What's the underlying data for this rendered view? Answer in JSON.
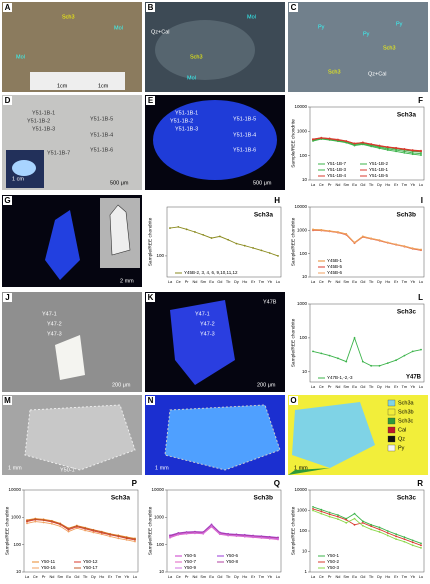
{
  "panels": [
    {
      "letter": "A",
      "labels": [
        "Sch3",
        "Mol",
        "Mol",
        "1cm",
        "1cm"
      ]
    },
    {
      "letter": "B",
      "labels": [
        "Mol",
        "Qz+Cal",
        "Sch3",
        "Mol"
      ]
    },
    {
      "letter": "C",
      "labels": [
        "Py",
        "Py",
        "Py",
        "Sch3",
        "Sch3",
        "Qz+Cal"
      ]
    },
    {
      "letter": "D",
      "labels": [
        "Y51-1B-1",
        "Y51-1B-2",
        "Y51-1B-3",
        "Y51-1B-5",
        "Y51-1B-4",
        "Y51-1B-6",
        "Y51-1B-7",
        "1 cm",
        "500 μm"
      ]
    },
    {
      "letter": "E",
      "labels": [
        "Y51-1B-1",
        "Y51-1B-2",
        "Y51-1B-3",
        "Y51-1B-5",
        "Y51-1B-4",
        "Y51-1B-6",
        "500 μm"
      ]
    },
    {
      "letter": "G",
      "labels": [
        "2 mm"
      ]
    },
    {
      "letter": "J",
      "labels": [
        "Y47-1",
        "Y47-2",
        "Y47-3",
        "200 μm"
      ]
    },
    {
      "letter": "K",
      "labels": [
        "Y47-1",
        "Y47-2",
        "Y47-3",
        "Y47B",
        "200 μm"
      ]
    },
    {
      "letter": "M",
      "labels": [
        "1 mm",
        "Y50-1"
      ]
    },
    {
      "letter": "N",
      "labels": [
        "1 mm"
      ]
    },
    {
      "letter": "O",
      "labels": [
        "1 mm"
      ],
      "legend": [
        {
          "name": "Sch3a",
          "color": "#7fd3e6"
        },
        {
          "name": "Sch3b",
          "color": "#f2ee3a"
        },
        {
          "name": "Sch3c",
          "color": "#2f9a3a"
        },
        {
          "name": "Cal",
          "color": "#c0182a"
        },
        {
          "name": "Qz",
          "color": "#111111"
        },
        {
          "name": "Py",
          "color": "#f4f4f4"
        }
      ]
    }
  ],
  "chart_data": [
    {
      "type": "line",
      "panel": "F",
      "title": "Sch3a",
      "y_label": "Sample/REE chondrite",
      "log_y": true,
      "categories": [
        "La",
        "Ce",
        "Pr",
        "Nd",
        "Sm",
        "Eu",
        "Gd",
        "Tb",
        "Dy",
        "Ho",
        "Er",
        "Tm",
        "Yb",
        "Lu"
      ],
      "ylim": [
        10,
        10000
      ],
      "yticks": [
        10,
        100,
        1000,
        10000
      ],
      "series": [
        {
          "name": "Y51-1B-7",
          "color": "#3bb34a",
          "values": [
            450,
            520,
            480,
            430,
            380,
            300,
            330,
            280,
            240,
            210,
            190,
            170,
            150,
            140
          ]
        },
        {
          "name": "Y51-1B-2",
          "color": "#3bb34a",
          "values": [
            420,
            500,
            460,
            410,
            360,
            280,
            310,
            260,
            220,
            190,
            170,
            150,
            130,
            120
          ]
        },
        {
          "name": "Y51-1B-3",
          "color": "#3bb34a",
          "values": [
            400,
            480,
            440,
            390,
            340,
            260,
            290,
            240,
            200,
            170,
            150,
            130,
            115,
            105
          ]
        },
        {
          "name": "Y51-1B-1",
          "color": "#d83a2e",
          "values": [
            480,
            550,
            510,
            460,
            400,
            320,
            350,
            300,
            260,
            230,
            210,
            190,
            170,
            160
          ]
        },
        {
          "name": "Y51-1B-4",
          "color": "#d83a2e",
          "values": [
            460,
            530,
            490,
            440,
            390,
            310,
            340,
            290,
            250,
            220,
            200,
            180,
            160,
            150
          ]
        },
        {
          "name": "Y51-1B-5",
          "color": "#d83a2e",
          "values": [
            470,
            540,
            500,
            450,
            395,
            315,
            345,
            295,
            255,
            225,
            205,
            185,
            165,
            155
          ]
        }
      ]
    },
    {
      "type": "line",
      "panel": "H",
      "title": "Sch3a",
      "y_label": "Sample/REE chondrite",
      "log_y": true,
      "categories": [
        "La",
        "Ce",
        "Pr",
        "Nd",
        "Sm",
        "Eu",
        "Gd",
        "Tb",
        "Dy",
        "Ho",
        "Er",
        "Tm",
        "Yb",
        "Lu"
      ],
      "ylim": [
        50,
        500
      ],
      "yticks": [
        100
      ],
      "series": [
        {
          "name": "Y45B-2, 3, 4, 6, 9,10,11,12",
          "color": "#8a8a1e",
          "values": [
            250,
            260,
            240,
            220,
            200,
            180,
            190,
            170,
            150,
            140,
            130,
            120,
            110,
            100
          ]
        }
      ]
    },
    {
      "type": "line",
      "panel": "I",
      "title": "Sch3b",
      "y_label": "Sample/REE chondrite",
      "log_y": true,
      "categories": [
        "La",
        "Ce",
        "Pr",
        "Nd",
        "Sm",
        "Eu",
        "Gd",
        "Tb",
        "Dy",
        "Ho",
        "Er",
        "Tm",
        "Yb",
        "Lu"
      ],
      "ylim": [
        10,
        10000
      ],
      "yticks": [
        10,
        100,
        1000,
        10000
      ],
      "series": [
        {
          "name": "Y45B-1",
          "color": "#e8892b",
          "values": [
            1100,
            1050,
            950,
            850,
            700,
            300,
            550,
            450,
            380,
            300,
            250,
            210,
            170,
            150
          ]
        },
        {
          "name": "Y45B-5",
          "color": "#d83a2e",
          "values": [
            1000,
            980,
            900,
            800,
            650,
            280,
            520,
            430,
            360,
            290,
            240,
            200,
            160,
            140
          ]
        },
        {
          "name": "Y45B-6",
          "color": "#f0a060",
          "values": [
            1050,
            1000,
            920,
            820,
            680,
            290,
            530,
            440,
            370,
            295,
            245,
            205,
            165,
            145
          ]
        }
      ]
    },
    {
      "type": "line",
      "panel": "L",
      "title": "Sch3c",
      "y_label": "Sample/REE chondrite",
      "log_y": true,
      "note": "Y47B",
      "categories": [
        "La",
        "Ce",
        "Pr",
        "Nd",
        "Sm",
        "Eu",
        "Gd",
        "Tb",
        "Dy",
        "Ho",
        "Er",
        "Tm",
        "Yb",
        "Lu"
      ],
      "ylim": [
        5,
        1000
      ],
      "yticks": [
        10,
        100,
        1000
      ],
      "series": [
        {
          "name": "Y47B-1,-2,-3",
          "color": "#3bb34a",
          "values": [
            40,
            35,
            30,
            25,
            20,
            100,
            20,
            15,
            15,
            18,
            22,
            30,
            40,
            45
          ]
        }
      ]
    },
    {
      "type": "line",
      "panel": "P",
      "title": "Sch3a",
      "y_label": "Sample/REE chondrite",
      "log_y": true,
      "categories": [
        "La",
        "Ce",
        "Pr",
        "Nd",
        "Sm",
        "Eu",
        "Gd",
        "Tb",
        "Dy",
        "Ho",
        "Er",
        "Tm",
        "Yb",
        "Lu"
      ],
      "ylim": [
        10,
        10000
      ],
      "yticks": [
        10,
        100,
        1000,
        10000
      ],
      "series": [
        {
          "name": "Y50-11",
          "color": "#e8892b",
          "values": [
            800,
            900,
            850,
            750,
            600,
            400,
            500,
            420,
            350,
            300,
            250,
            220,
            190,
            170
          ]
        },
        {
          "name": "Y50-12",
          "color": "#d83a2e",
          "values": [
            700,
            820,
            780,
            680,
            550,
            350,
            450,
            380,
            320,
            270,
            230,
            200,
            170,
            150
          ]
        },
        {
          "name": "Y50-16",
          "color": "#f0a060",
          "values": [
            600,
            700,
            650,
            580,
            470,
            300,
            400,
            330,
            280,
            240,
            200,
            170,
            150,
            130
          ]
        },
        {
          "name": "Y50-17",
          "color": "#c0582a",
          "values": [
            750,
            860,
            800,
            720,
            580,
            380,
            480,
            400,
            340,
            290,
            240,
            210,
            180,
            160
          ]
        }
      ]
    },
    {
      "type": "line",
      "panel": "Q",
      "title": "Sch3b",
      "y_label": "Sample/REE chondrite",
      "log_y": true,
      "categories": [
        "La",
        "Ce",
        "Pr",
        "Nd",
        "Sm",
        "Eu",
        "Gd",
        "Tb",
        "Dy",
        "Ho",
        "Er",
        "Tm",
        "Yb",
        "Lu"
      ],
      "ylim": [
        10,
        10000
      ],
      "yticks": [
        10,
        100,
        1000,
        10000
      ],
      "series": [
        {
          "name": "Y50-5",
          "color": "#c83ac8",
          "values": [
            200,
            250,
            270,
            280,
            270,
            500,
            260,
            230,
            220,
            210,
            200,
            190,
            180,
            170
          ]
        },
        {
          "name": "Y50-6",
          "color": "#9a3ad8",
          "values": [
            220,
            270,
            290,
            300,
            290,
            550,
            280,
            250,
            240,
            230,
            215,
            205,
            195,
            185
          ]
        },
        {
          "name": "Y50-7",
          "color": "#e060c0",
          "values": [
            180,
            230,
            250,
            260,
            250,
            450,
            240,
            215,
            205,
            195,
            185,
            175,
            165,
            155
          ]
        },
        {
          "name": "Y50-8",
          "color": "#b040a0",
          "values": [
            210,
            260,
            280,
            290,
            280,
            520,
            270,
            240,
            230,
            220,
            208,
            198,
            188,
            178
          ]
        },
        {
          "name": "Y50-9",
          "color": "#d070e0",
          "values": [
            190,
            240,
            260,
            270,
            260,
            480,
            250,
            222,
            212,
            202,
            192,
            182,
            172,
            162
          ]
        }
      ]
    },
    {
      "type": "line",
      "panel": "R",
      "title": "Sch3c",
      "y_label": "Sample/REE chondrite",
      "log_y": true,
      "categories": [
        "La",
        "Ce",
        "Pr",
        "Nd",
        "Sm",
        "Eu",
        "Gd",
        "Tb",
        "Dy",
        "Ho",
        "Er",
        "Tm",
        "Yb",
        "Lu"
      ],
      "ylim": [
        1,
        10000
      ],
      "yticks": [
        1,
        10,
        100,
        1000,
        10000
      ],
      "series": [
        {
          "name": "Y50-1",
          "color": "#3bb34a",
          "values": [
            1500,
            1100,
            800,
            600,
            400,
            700,
            300,
            200,
            150,
            100,
            70,
            50,
            35,
            25
          ]
        },
        {
          "name": "Y50-2",
          "color": "#d83a2e",
          "values": [
            1200,
            900,
            650,
            500,
            350,
            200,
            250,
            170,
            120,
            80,
            55,
            40,
            28,
            20
          ]
        },
        {
          "name": "Y50-3",
          "color": "#8ad84a",
          "values": [
            1000,
            700,
            500,
            380,
            250,
            400,
            180,
            120,
            90,
            60,
            40,
            30,
            20,
            15
          ]
        }
      ]
    }
  ]
}
